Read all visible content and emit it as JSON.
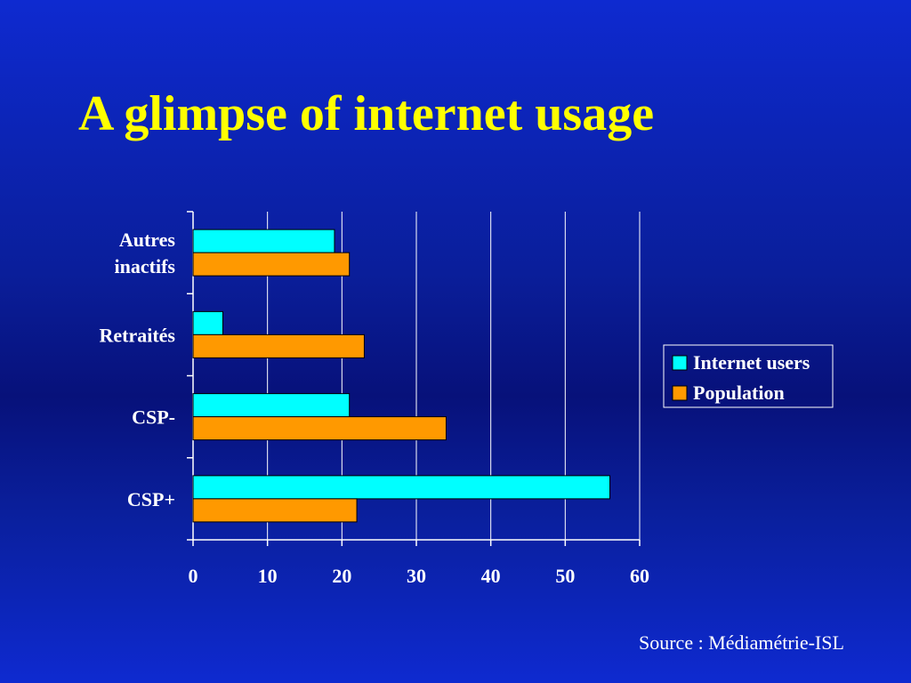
{
  "slide": {
    "title": "A glimpse of internet usage",
    "source": "Source : Médiamétrie-ISL"
  },
  "chart_data": {
    "type": "bar",
    "orientation": "horizontal",
    "categories": [
      [
        "Autres",
        "inactifs"
      ],
      [
        "Retraités"
      ],
      [
        "CSP-"
      ],
      [
        "CSP+"
      ]
    ],
    "series": [
      {
        "name": "Internet users",
        "color": "#00ffff",
        "values": [
          19,
          4,
          21,
          56
        ]
      },
      {
        "name": "Population",
        "color": "#ff9900",
        "values": [
          21,
          23,
          34,
          22
        ]
      }
    ],
    "xlim": [
      0,
      60
    ],
    "xticks": [
      0,
      10,
      20,
      30,
      40,
      50,
      60
    ],
    "grid": true,
    "legend_position": "right"
  }
}
